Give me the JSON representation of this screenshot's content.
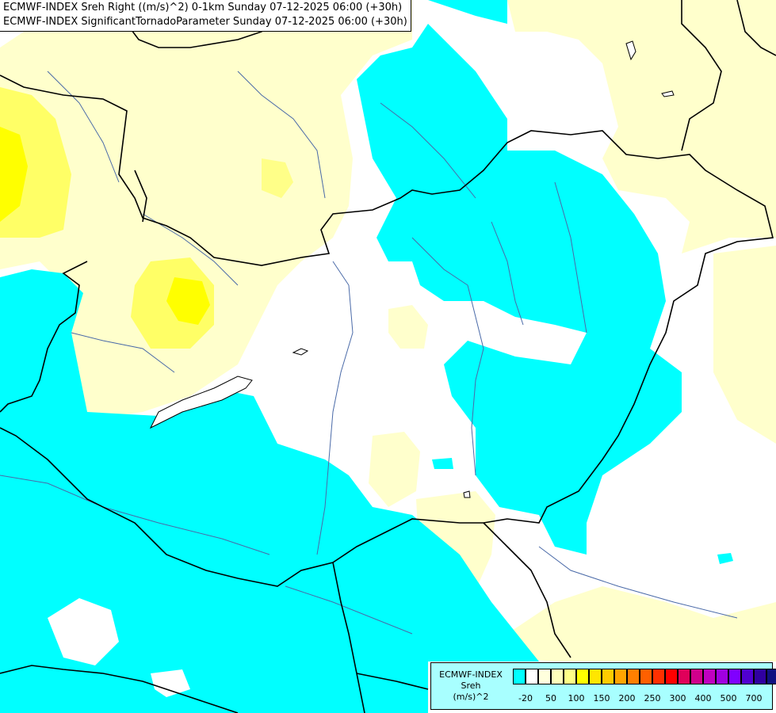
{
  "title": {
    "line1": "ECMWF-INDEX Sreh Right ((m/s)^2) 0-1km Sunday 07-12-2025 06:00 (+30h)",
    "line2": "ECMWF-INDEX SignificantTornadoParameter Sunday 07-12-2025 06:00 (+30h)"
  },
  "legend": {
    "line1": "ECMWF-INDEX",
    "line2": "Sreh",
    "line3": "(m/s)^2",
    "ticks": [
      "-20",
      "50",
      "100",
      "150",
      "200",
      "250",
      "300",
      "400",
      "500",
      "700"
    ],
    "colors": [
      "#00ffff",
      "#ffffff",
      "#ffffdd",
      "#ffffbb",
      "#ffff88",
      "#ffff00",
      "#ffe600",
      "#ffcc00",
      "#ffa500",
      "#ff8000",
      "#ff6000",
      "#ff3000",
      "#ff0000",
      "#e0005a",
      "#d0008c",
      "#c000c0",
      "#a000e0",
      "#8000ff",
      "#5000d0",
      "#3000a0",
      "#101080"
    ]
  },
  "map_colors": {
    "cyan": "#00ffff",
    "light_yellow": "#ffffcc",
    "yellow": "#ffff66",
    "bright_yellow": "#ffff00",
    "border": "#000000",
    "river": "#4a6aa8"
  }
}
